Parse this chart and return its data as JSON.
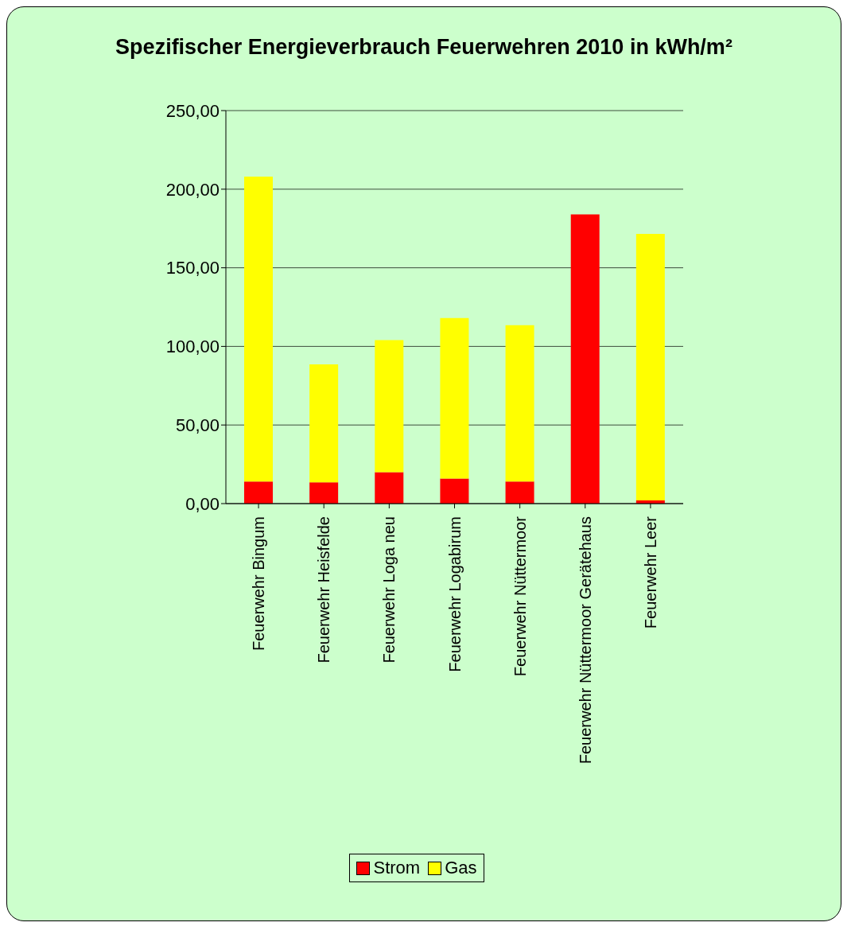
{
  "chart_data": {
    "type": "bar",
    "title": "Spezifischer Energieverbrauch Feuerwehren 2010 in kWh/m²",
    "categories": [
      "Feuerwehr Bingum",
      "Feuerwehr Heisfelde",
      "Feuerwehr Loga neu",
      "Feuerwehr Logabirum",
      "Feuerwehr Nüttermoor",
      "Feuerwehr Nüttermoor Gerätehaus",
      "Feuerwehr Leer"
    ],
    "series": [
      {
        "name": "Strom",
        "color": "#ff0000",
        "values": [
          14,
          13.5,
          20,
          16,
          14,
          184,
          2
        ]
      },
      {
        "name": "Gas",
        "color": "#ffff00",
        "values": [
          194,
          75,
          84,
          102,
          99.5,
          0,
          169.5
        ]
      }
    ],
    "stacked": true,
    "ylim": [
      0,
      250
    ],
    "yticks": [
      {
        "value": 0,
        "label": "0,00"
      },
      {
        "value": 50,
        "label": "50,00"
      },
      {
        "value": 100,
        "label": "100,00"
      },
      {
        "value": 150,
        "label": "150,00"
      },
      {
        "value": 200,
        "label": "200,00"
      },
      {
        "value": 250,
        "label": "250,00"
      }
    ],
    "grid": "y",
    "legend": "bottom"
  }
}
